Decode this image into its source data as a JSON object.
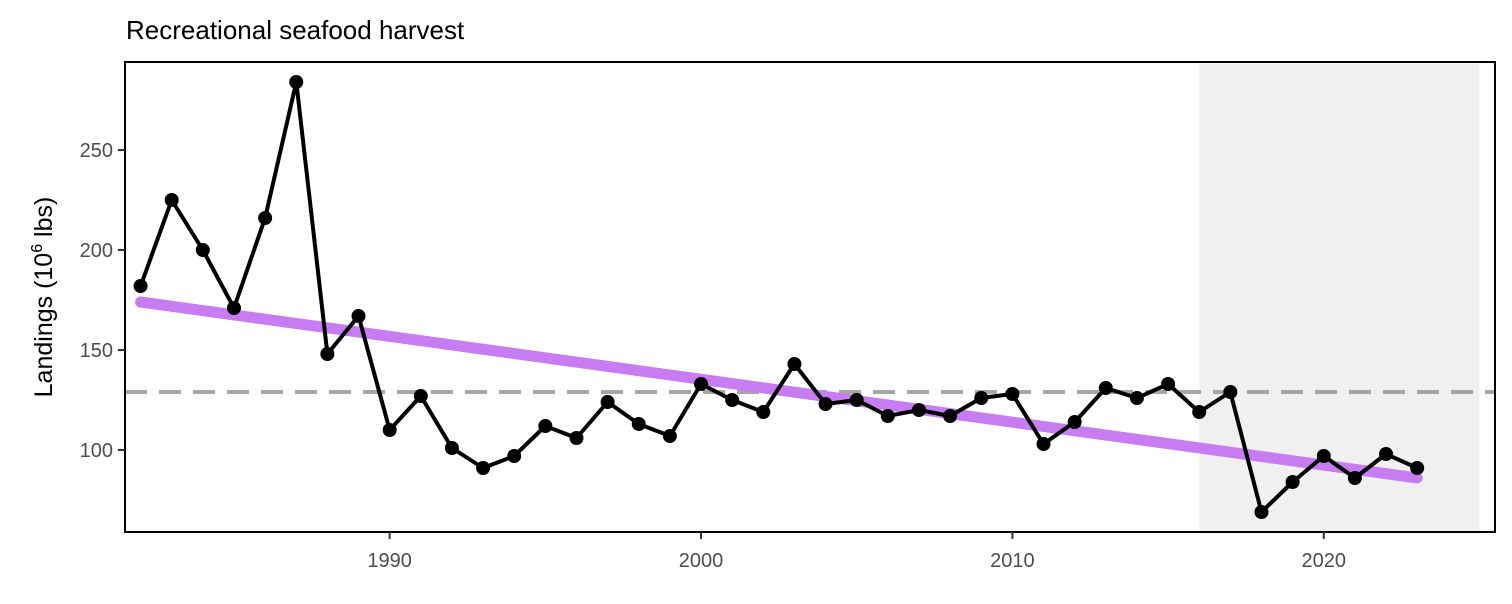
{
  "chart_data": {
    "type": "line",
    "title": "Recreational seafood harvest",
    "ylabel": "Landings (10",
    "ylabel_superscript": "6",
    "ylabel_suffix": " lbs)",
    "xlabel": "",
    "xlim": [
      1981.5,
      2025.5
    ],
    "ylim": [
      59,
      294
    ],
    "x_ticks": [
      1990,
      2000,
      2010,
      2020
    ],
    "y_ticks": [
      100,
      150,
      200,
      250
    ],
    "grid": false,
    "shaded_region": {
      "x_start": 2016,
      "x_end": 2025,
      "color": "#f0f0f0"
    },
    "reference_line": {
      "y": 129,
      "style": "dashed",
      "color": "#a6a6a6"
    },
    "series": [
      {
        "kind": "observed",
        "color": "#000000",
        "x": [
          1982,
          1983,
          1984,
          1985,
          1986,
          1987,
          1988,
          1989,
          1990,
          1991,
          1992,
          1993,
          1994,
          1995,
          1996,
          1997,
          1998,
          1999,
          2000,
          2001,
          2002,
          2003,
          2004,
          2005,
          2006,
          2007,
          2008,
          2009,
          2010,
          2011,
          2012,
          2013,
          2014,
          2015,
          2016,
          2017,
          2018,
          2019,
          2020,
          2021,
          2022,
          2023
        ],
        "y": [
          182,
          225,
          200,
          171,
          216,
          284,
          148,
          167,
          110,
          127,
          101,
          91,
          97,
          112,
          106,
          124,
          113,
          107,
          133,
          125,
          119,
          143,
          123,
          125,
          117,
          120,
          117,
          126,
          128,
          103,
          114,
          131,
          126,
          133,
          119,
          129,
          69,
          84,
          97,
          86,
          98,
          91
        ]
      },
      {
        "kind": "trend",
        "color": "#c77cf1",
        "x": [
          1982,
          2023
        ],
        "y": [
          174,
          86
        ]
      }
    ]
  }
}
